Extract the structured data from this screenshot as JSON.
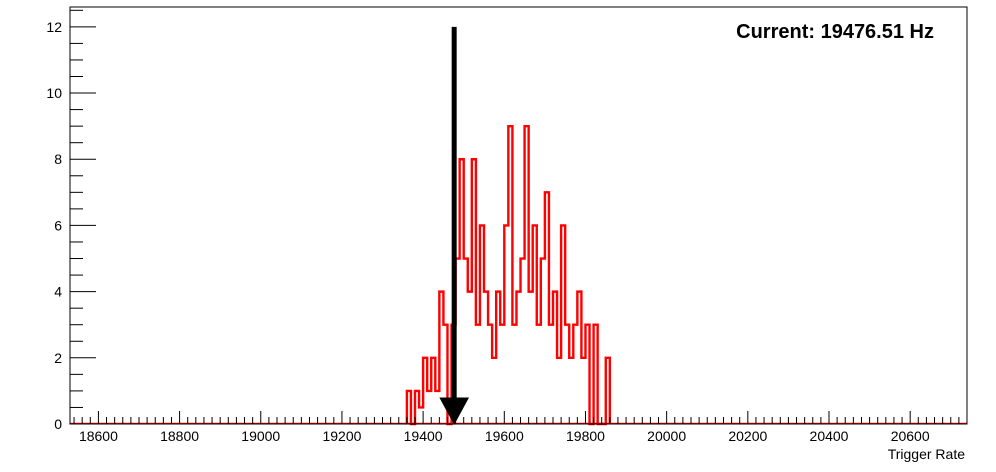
{
  "chart_data": {
    "type": "histogram",
    "xlabel": "Trigger Rate",
    "ylabel": "",
    "xlim": [
      18530,
      20740
    ],
    "ylim": [
      0,
      12.6
    ],
    "x_ticks": [
      18600,
      18800,
      19000,
      19200,
      19400,
      19600,
      19800,
      20000,
      20200,
      20400,
      20600
    ],
    "y_ticks": [
      0,
      2,
      4,
      6,
      8,
      10,
      12
    ],
    "x_minor_step": 20,
    "y_minor_step": 0.5,
    "bin_width": 10,
    "grid": false,
    "series": [
      {
        "color": "#ff0000",
        "bins": [
          [
            19360,
            1
          ],
          [
            19370,
            0
          ],
          [
            19380,
            1
          ],
          [
            19390,
            0.5
          ],
          [
            19400,
            2
          ],
          [
            19410,
            1
          ],
          [
            19420,
            2
          ],
          [
            19430,
            1
          ],
          [
            19440,
            4
          ],
          [
            19450,
            3
          ],
          [
            19460,
            0
          ],
          [
            19470,
            3
          ],
          [
            19480,
            5
          ],
          [
            19490,
            8
          ],
          [
            19500,
            5
          ],
          [
            19510,
            4
          ],
          [
            19520,
            8
          ],
          [
            19530,
            3
          ],
          [
            19540,
            6
          ],
          [
            19550,
            4
          ],
          [
            19560,
            3
          ],
          [
            19570,
            2
          ],
          [
            19580,
            4
          ],
          [
            19590,
            3
          ],
          [
            19600,
            6
          ],
          [
            19610,
            9
          ],
          [
            19620,
            3
          ],
          [
            19630,
            4
          ],
          [
            19640,
            5
          ],
          [
            19650,
            9
          ],
          [
            19660,
            4
          ],
          [
            19670,
            6
          ],
          [
            19680,
            3
          ],
          [
            19690,
            5
          ],
          [
            19700,
            7
          ],
          [
            19710,
            3
          ],
          [
            19720,
            4
          ],
          [
            19730,
            2
          ],
          [
            19740,
            6
          ],
          [
            19750,
            3
          ],
          [
            19760,
            2
          ],
          [
            19770,
            3
          ],
          [
            19780,
            4
          ],
          [
            19790,
            2
          ],
          [
            19800,
            3
          ],
          [
            19810,
            0
          ],
          [
            19820,
            3
          ],
          [
            19830,
            0
          ],
          [
            19840,
            0
          ],
          [
            19850,
            2
          ]
        ]
      }
    ],
    "marker": {
      "x": 19476.51,
      "y_top": 12,
      "y_bottom": 0,
      "color": "#000000"
    },
    "annotation": "Current: 19476.51 Hz"
  }
}
